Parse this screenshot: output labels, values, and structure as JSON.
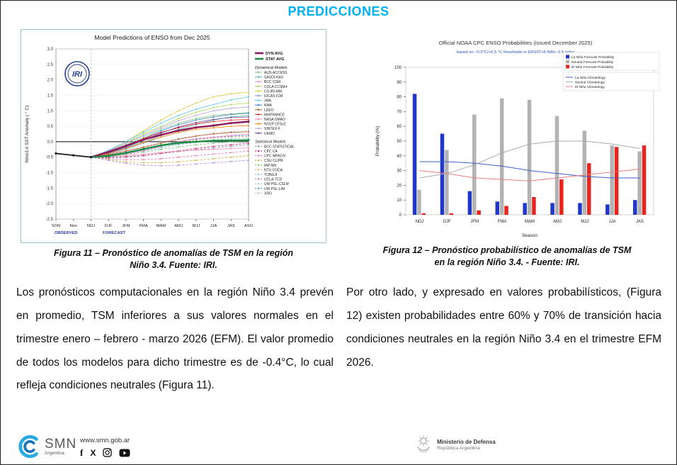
{
  "page": {
    "title": "PREDICCIONES"
  },
  "figures": {
    "fig11": {
      "line1": "Figura 11 – Pronóstico de anomalías de TSM en la región",
      "line2": "Niño 3.4. Fuente: IRI."
    },
    "fig12": {
      "line1": "Figura 12 – Pronóstico probabilístico de anomalías de TSM",
      "line2": "en la región Niño 3.4. - Fuente: IRI."
    }
  },
  "paragraphs": {
    "left": "Los pronósticos computacionales en la región Niño 3.4 prevén en promedio, TSM inferiores a sus valores normales en el trimestre enero – febrero - marzo 2026 (EFM). El valor promedio de todos los modelos para dicho trimestre es de -0.4°C, lo cual refleja condiciones neutrales (Figura 11).",
    "right": "Por otro lado, y expresado en valores probabilísticos, (Figura 12) existen probabilidades entre 60% y 70% de transición hacia condiciones neutrales en la región Niño 3.4 en el trimestre EFM 2026."
  },
  "footer": {
    "smn_name": "SMN",
    "smn_sub": "Argentina",
    "website": "www.smn.gob.ar",
    "facebook_glyph": "f",
    "x_glyph": "X",
    "ministry_line1": "Ministerio de Defensa",
    "ministry_line2": "República Argentina"
  },
  "chart_data": [
    {
      "id": "iri-plume",
      "type": "line",
      "title": "Model Predictions of ENSO from Dec 2025",
      "ylabel": "Nino3.4 SST Anomaly ( ° C)",
      "ylim": [
        -2.5,
        3.0
      ],
      "categories": [
        "SON",
        "Nov",
        "NDJ",
        "DJF",
        "JFM",
        "FMA",
        "MAM",
        "AMJ",
        "MJJ",
        "JJA",
        "JAS",
        "ASO"
      ],
      "observed_label": "OBSERVED",
      "forecast_label": "FORECAST",
      "dyn_header": "Dynamical Models",
      "stat_header": "Statistical Models",
      "logo_text": "IRI",
      "observed": {
        "name": "OBSERVED",
        "color": "#1a1a1a",
        "start": 0,
        "values": [
          -0.38,
          -0.44,
          -0.5
        ]
      },
      "avg_series": [
        {
          "name": "DYN AVG",
          "color": "#8e1a5b",
          "start": 2,
          "values": [
            -0.5,
            -0.33,
            -0.13,
            0.07,
            0.22,
            0.36,
            0.46,
            0.52,
            0.6,
            0.65
          ]
        },
        {
          "name": "STAT AVG",
          "color": "#1d8a44",
          "start": 2,
          "values": [
            -0.5,
            -0.46,
            -0.36,
            -0.24,
            -0.12,
            -0.04,
            0.0,
            0.03,
            0.04,
            0.05
          ]
        }
      ],
      "dynamical_models": [
        {
          "name": "AUS-ACCESS",
          "color": "#7ec97f",
          "start": 2,
          "values": [
            -0.5,
            -0.32,
            -0.1,
            0.15,
            0.4,
            0.6,
            0.75,
            0.85,
            0.9,
            0.95
          ]
        },
        {
          "name": "SAUDI-KAU",
          "color": "#52b8a8",
          "start": 2,
          "values": [
            -0.5,
            -0.38,
            -0.2,
            0.0,
            0.2,
            0.4,
            0.55,
            0.7,
            0.8,
            0.85
          ]
        },
        {
          "name": "BCC CSM",
          "color": "#e78ac3",
          "start": 2,
          "values": [
            -0.5,
            -0.45,
            -0.4,
            -0.3,
            -0.15,
            0.0,
            0.1,
            0.15,
            0.2,
            0.25
          ]
        },
        {
          "name": "COLA CCSM4",
          "color": "#a6d854",
          "start": 2,
          "values": [
            -0.5,
            -0.3,
            -0.05,
            0.25,
            0.5,
            0.75,
            0.95,
            1.1,
            1.2,
            1.25
          ]
        },
        {
          "name": "CS-IRI-MM",
          "color": "#e0c83a",
          "start": 2,
          "values": [
            -0.5,
            -0.3,
            0.0,
            0.35,
            0.7,
            1.0,
            1.25,
            1.45,
            1.55,
            1.6
          ]
        },
        {
          "name": "IOCAS ICM",
          "color": "#8da0cb",
          "start": 2,
          "values": [
            -0.5,
            -0.4,
            -0.25,
            -0.05,
            0.15,
            0.3,
            0.45,
            0.55,
            0.6,
            0.62
          ]
        },
        {
          "name": "JMA",
          "color": "#55c8e8",
          "start": 2,
          "values": [
            -0.5,
            -0.28,
            0.0,
            0.3,
            0.6,
            0.85,
            1.05,
            1.2,
            1.35,
            1.45
          ]
        },
        {
          "name": "KMA",
          "color": "#3a7fc1",
          "start": 2,
          "values": [
            -0.5,
            -0.35,
            -0.15,
            0.1,
            0.35,
            0.55,
            0.7,
            0.8,
            0.88,
            0.92
          ]
        },
        {
          "name": "LDEO",
          "color": "#b15928",
          "start": 2,
          "values": [
            -0.5,
            -0.42,
            -0.3,
            -0.18,
            -0.05,
            0.08,
            0.18,
            0.25,
            0.3,
            0.32
          ]
        },
        {
          "name": "MetFRANCE",
          "color": "#e31a1c",
          "start": 2,
          "values": [
            -0.5,
            -0.33,
            -0.12,
            0.1,
            0.3,
            0.45,
            0.58,
            0.65,
            0.7,
            0.72
          ]
        },
        {
          "name": "NASA GMAO",
          "color": "#f48fb1",
          "start": 2,
          "values": [
            -0.5,
            -0.48,
            -0.45,
            -0.4,
            -0.35,
            -0.3,
            -0.27,
            -0.25,
            -0.22,
            -0.2
          ]
        },
        {
          "name": "NCEP CFSv2",
          "color": "#ff7f00",
          "start": 2,
          "values": [
            -0.5,
            -0.38,
            -0.22,
            -0.02,
            0.15,
            0.3,
            0.4,
            0.45,
            0.5,
            0.52
          ]
        },
        {
          "name": "SINTEX-F",
          "color": "#b39ddb",
          "start": 2,
          "values": [
            -0.5,
            -0.3,
            -0.05,
            0.2,
            0.45,
            0.68,
            0.85,
            1.0,
            1.08,
            1.12
          ]
        },
        {
          "name": "UKMO",
          "color": "#6a3d9a",
          "start": 2,
          "values": [
            -0.5,
            -0.36,
            -0.18,
            0.05,
            0.28,
            0.48,
            0.62,
            0.72,
            0.78,
            0.8
          ]
        }
      ],
      "statistical_models": [
        {
          "name": "BCC STATISTICAL",
          "color": "#8c8c8c",
          "start": 2,
          "values": [
            -0.5,
            -0.5,
            -0.48,
            -0.44,
            -0.38,
            -0.32,
            -0.26,
            -0.2,
            -0.15,
            -0.1
          ]
        },
        {
          "name": "CPC CA",
          "color": "#c51b8a",
          "start": 2,
          "values": [
            -0.5,
            -0.52,
            -0.5,
            -0.45,
            -0.38,
            -0.3,
            -0.22,
            -0.15,
            -0.1,
            -0.05
          ]
        },
        {
          "name": "CPC MRKOV",
          "color": "#dd6fa8",
          "start": 2,
          "values": [
            -0.5,
            -0.55,
            -0.58,
            -0.58,
            -0.55,
            -0.5,
            -0.45,
            -0.4,
            -0.35,
            -0.3
          ]
        },
        {
          "name": "CSU CLIPR",
          "color": "#c9b23d",
          "start": 2,
          "values": [
            -0.5,
            -0.58,
            -0.65,
            -0.68,
            -0.68,
            -0.65,
            -0.6,
            -0.55,
            -0.5,
            -0.45
          ]
        },
        {
          "name": "IAP-NN",
          "color": "#74c476",
          "start": 2,
          "values": [
            -0.5,
            -0.48,
            -0.42,
            -0.34,
            -0.25,
            -0.17,
            -0.1,
            -0.05,
            0.0,
            0.03
          ]
        },
        {
          "name": "NTU CODA",
          "color": "#fdae6b",
          "start": 2,
          "values": [
            -0.5,
            -0.44,
            -0.35,
            -0.24,
            -0.12,
            -0.02,
            0.06,
            0.12,
            0.16,
            0.18
          ]
        },
        {
          "name": "TONGJI",
          "color": "#80cbc4",
          "start": 2,
          "values": [
            -0.5,
            -0.47,
            -0.4,
            -0.3,
            -0.2,
            -0.1,
            -0.02,
            0.05,
            0.1,
            0.12
          ]
        },
        {
          "name": "UCLA-TCD",
          "color": "#b57edc",
          "start": 2,
          "values": [
            -0.5,
            -0.6,
            -0.7,
            -0.76,
            -0.78,
            -0.76,
            -0.72,
            -0.68,
            -0.64,
            -0.6
          ]
        },
        {
          "name": "UW PSL-CSLM",
          "color": "#9ecae1",
          "start": 2,
          "values": [
            -0.5,
            -0.46,
            -0.38,
            -0.28,
            -0.18,
            -0.08,
            0.0,
            0.06,
            0.1,
            0.12
          ]
        },
        {
          "name": "UW PSL-LIM",
          "color": "#4292c6",
          "start": 2,
          "values": [
            -0.5,
            -0.44,
            -0.34,
            -0.22,
            -0.1,
            0.0,
            0.08,
            0.14,
            0.18,
            0.2
          ]
        },
        {
          "name": "XRO",
          "color": "#bdbdbd",
          "start": 2,
          "values": [
            -0.5,
            -0.42,
            -0.3,
            -0.16,
            -0.02,
            0.1,
            0.2,
            0.28,
            0.33,
            0.35
          ]
        }
      ]
    },
    {
      "id": "noaa-probabilities",
      "type": "bar",
      "title": "Official NOAA CPC ENSO Probabilities (issued December 2025)",
      "subtitle": "based on −0.5°C/+0.5 °C thresholds in ERSSTv5 Niño−3.4 index",
      "ylabel": "Probability (%)",
      "xlabel": "Season",
      "ylim": [
        0,
        100
      ],
      "categories": [
        "NDJ",
        "DJF",
        "JFM",
        "FMA",
        "MAM",
        "AMJ",
        "MJJ",
        "JJA",
        "JAS"
      ],
      "bar_series": [
        {
          "name": "La Niña Forecast Probability",
          "color": "#2038c8",
          "values": [
            82,
            55,
            16,
            9,
            8,
            8,
            8,
            7,
            10
          ]
        },
        {
          "name": "Neutral Forecast Probability",
          "color": "#b3b3b3",
          "values": [
            17,
            44,
            68,
            79,
            78,
            67,
            57,
            47,
            43
          ]
        },
        {
          "name": "El Niño Forecast Probability",
          "color": "#e8241f",
          "values": [
            1,
            1,
            3,
            6,
            12,
            24,
            35,
            46,
            47
          ]
        }
      ],
      "line_series": [
        {
          "name": "La Niña Climatology",
          "color": "#3a5fcd",
          "values": [
            36,
            36,
            35,
            33,
            30,
            28,
            26,
            25,
            25
          ]
        },
        {
          "name": "Neutral Climatology",
          "color": "#aaaaaa",
          "values": [
            25,
            28,
            34,
            42,
            48,
            50,
            50,
            48,
            45
          ]
        },
        {
          "name": "El Niño Climatology",
          "color": "#e87f7f",
          "values": [
            30,
            28,
            25,
            24,
            23,
            25,
            27,
            29,
            31
          ]
        }
      ]
    }
  ]
}
